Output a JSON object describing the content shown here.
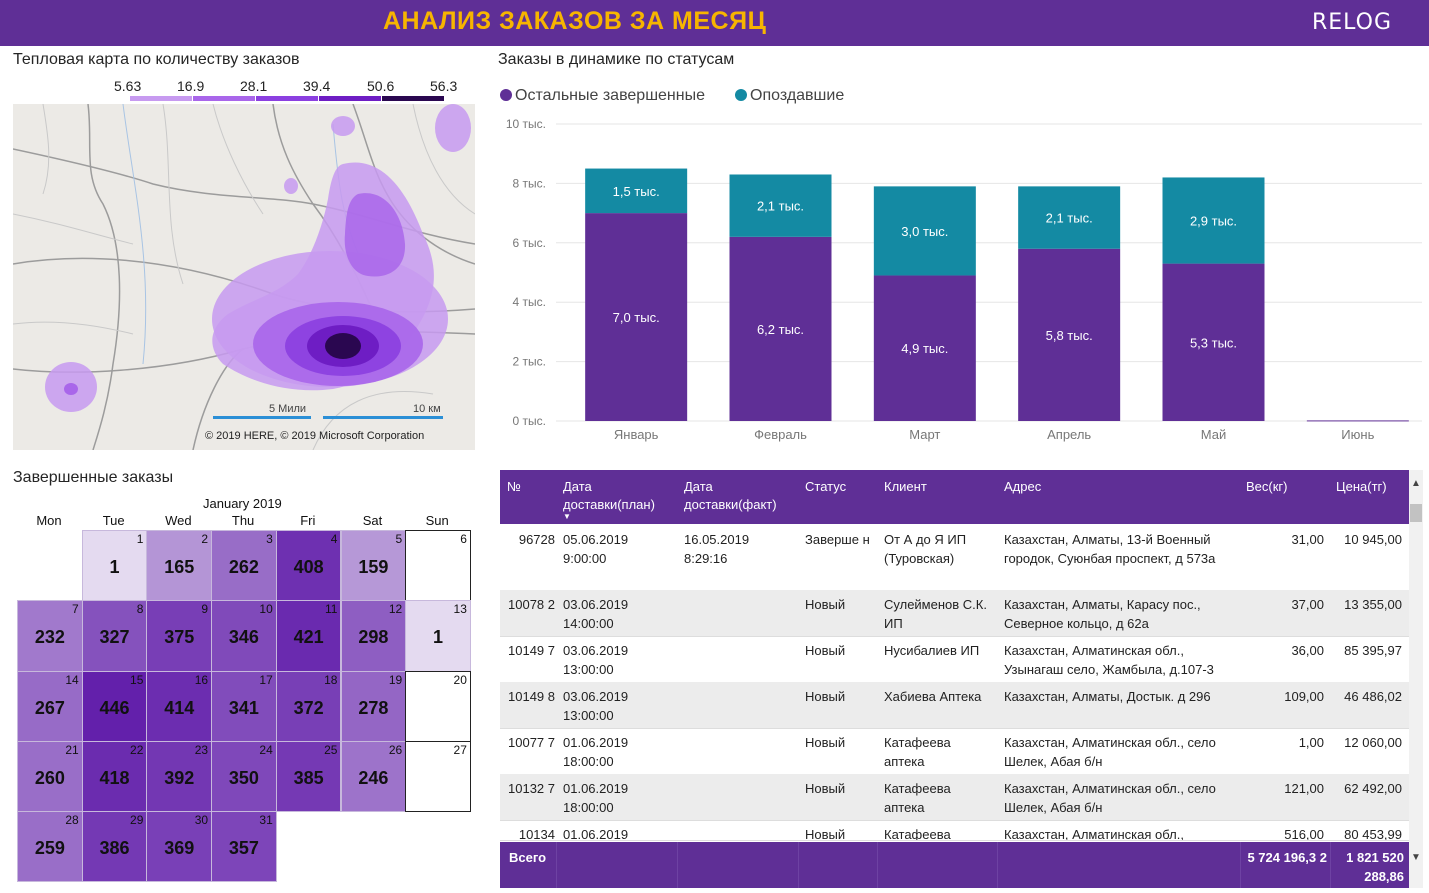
{
  "header": {
    "title": "АНАЛИЗ ЗАКАЗОВ ЗА МЕСЯЦ",
    "logo": "RELOG"
  },
  "heatmap": {
    "title": "Тепловая карта по количеству заказов",
    "legend": [
      "5.63",
      "16.9",
      "28.1",
      "39.4",
      "50.6",
      "56.3"
    ],
    "legend_colors": [
      "#c79af0",
      "#a966ea",
      "#8b3fe0",
      "#6e1dc4",
      "#4c108f",
      "#2a0750"
    ],
    "scale_miles": "5 Мили",
    "scale_km": "10 км",
    "credit": "© 2019 HERE, © 2019 Microsoft Corporation"
  },
  "calendar": {
    "title": "Завершенные заказы",
    "month": "January 2019",
    "dow": [
      "Mon",
      "Tue",
      "Wed",
      "Thu",
      "Fri",
      "Sat",
      "Sun"
    ],
    "weeks": [
      [
        null,
        {
          "d": "1",
          "v": "1"
        },
        {
          "d": "2",
          "v": "165"
        },
        {
          "d": "3",
          "v": "262"
        },
        {
          "d": "4",
          "v": "408"
        },
        {
          "d": "5",
          "v": "159"
        },
        {
          "d": "6",
          "v": ""
        }
      ],
      [
        {
          "d": "7",
          "v": "232"
        },
        {
          "d": "8",
          "v": "327"
        },
        {
          "d": "9",
          "v": "375"
        },
        {
          "d": "10",
          "v": "346"
        },
        {
          "d": "11",
          "v": "421"
        },
        {
          "d": "12",
          "v": "298"
        },
        {
          "d": "13",
          "v": "1"
        }
      ],
      [
        {
          "d": "14",
          "v": "267"
        },
        {
          "d": "15",
          "v": "446"
        },
        {
          "d": "16",
          "v": "414"
        },
        {
          "d": "17",
          "v": "341"
        },
        {
          "d": "18",
          "v": "372"
        },
        {
          "d": "19",
          "v": "278"
        },
        {
          "d": "20",
          "v": ""
        }
      ],
      [
        {
          "d": "21",
          "v": "260"
        },
        {
          "d": "22",
          "v": "418"
        },
        {
          "d": "23",
          "v": "392"
        },
        {
          "d": "24",
          "v": "350"
        },
        {
          "d": "25",
          "v": "385"
        },
        {
          "d": "26",
          "v": "246"
        },
        {
          "d": "27",
          "v": ""
        }
      ],
      [
        {
          "d": "28",
          "v": "259"
        },
        {
          "d": "29",
          "v": "386"
        },
        {
          "d": "30",
          "v": "369"
        },
        {
          "d": "31",
          "v": "357"
        },
        null,
        null,
        null
      ]
    ]
  },
  "chart_data": {
    "type": "bar",
    "title": "Заказы в динамике по статусам",
    "stacked": true,
    "categories": [
      "Январь",
      "Февраль",
      "Март",
      "Апрель",
      "Май",
      "Июнь"
    ],
    "series": [
      {
        "name": "Остальные завершенные",
        "color": "#5f2f96",
        "values": [
          7.0,
          6.2,
          4.9,
          5.8,
          5.3,
          0.02
        ],
        "labels": [
          "7,0 тыс.",
          "6,2 тыс.",
          "4,9 тыс.",
          "5,8 тыс.",
          "5,3 тыс.",
          ""
        ]
      },
      {
        "name": "Опоздавшие",
        "color": "#148aa3",
        "values": [
          1.5,
          2.1,
          3.0,
          2.1,
          2.9,
          0
        ],
        "labels": [
          "1,5 тыс.",
          "2,1 тыс.",
          "3,0 тыс.",
          "2,1 тыс.",
          "2,9 тыс.",
          ""
        ]
      }
    ],
    "y_ticks": [
      "0 тыс.",
      "2 тыс.",
      "4 тыс.",
      "6 тыс.",
      "8 тыс.",
      "10 тыс."
    ],
    "ylim": [
      0,
      10
    ],
    "grid": true,
    "legend": "top-left"
  },
  "table": {
    "headers": [
      "№",
      "Дата доставки(план)",
      "Дата доставки(факт)",
      "Статус",
      "Клиент",
      "Адрес",
      "Вес(кг)",
      "Цена(тг)"
    ],
    "rows": [
      {
        "no": "96728",
        "plan": "05.06.2019 9:00:00",
        "fact": "16.05.2019 8:29:16",
        "status": "Заверше н",
        "client": "От А до Я ИП (Туровская)",
        "address": "Казахстан, Алматы, 13-й Военный городок, Суюнбая проспект, д 573а",
        "weight": "31,00",
        "price": "10 945,00"
      },
      {
        "no": "10078 2",
        "plan": "03.06.2019 14:00:00",
        "fact": "",
        "status": "Новый",
        "client": "Сулейменов С.К. ИП",
        "address": "Казахстан, Алматы, Карасу пос., Северное кольцо, д 62а",
        "weight": "37,00",
        "price": "13 355,00"
      },
      {
        "no": "10149 7",
        "plan": "03.06.2019 13:00:00",
        "fact": "",
        "status": "Новый",
        "client": "Нусибалиев ИП",
        "address": "Казахстан, Алматинская обл., Узынагаш село, Жамбыла, д.107-3",
        "weight": "36,00",
        "price": "85 395,97"
      },
      {
        "no": "10149 8",
        "plan": "03.06.2019 13:00:00",
        "fact": "",
        "status": "Новый",
        "client": "Хабиева Аптека",
        "address": "Казахстан, Алматы, Достык. д 296",
        "weight": "109,00",
        "price": "46 486,02"
      },
      {
        "no": "10077 7",
        "plan": "01.06.2019 18:00:00",
        "fact": "",
        "status": "Новый",
        "client": "Катафеева аптека",
        "address": "Казахстан, Алматинская обл., село Шелек, Абая б/н",
        "weight": "1,00",
        "price": "12 060,00"
      },
      {
        "no": "10132 7",
        "plan": "01.06.2019 18:00:00",
        "fact": "",
        "status": "Новый",
        "client": "Катафеева аптека",
        "address": "Казахстан, Алматинская обл., село Шелек, Абая б/н",
        "weight": "121,00",
        "price": "62 492,00"
      },
      {
        "no": "10134",
        "plan": "01.06.2019",
        "fact": "",
        "status": "Новый",
        "client": "Катафеева",
        "address": "Казахстан, Алматинская обл.,",
        "weight": "516,00",
        "price": "80 453,99"
      }
    ],
    "total": {
      "label": "Всего",
      "weight": "5 724 196,3 2",
      "price": "1 821 520 288,86"
    }
  }
}
